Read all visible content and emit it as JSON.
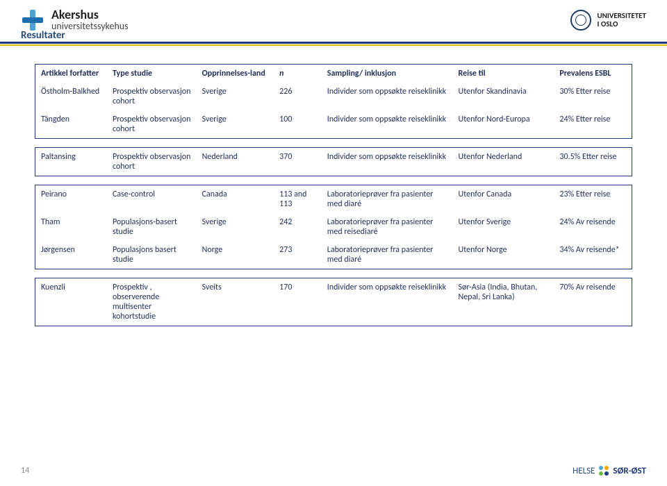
{
  "brand": {
    "left_line1": "Akershus",
    "left_line2": "universitetssykehus",
    "right_line1": "UNIVERSITETET",
    "right_line2": "I OSLO"
  },
  "section_title": "Resultater",
  "page_number": "14",
  "footer_brand": {
    "prefix": "HELSE",
    "suffix": "SØR-ØST"
  },
  "columns": [
    "Artikkel forfatter",
    "Type studie",
    "Opprinnelses-land",
    "n",
    "Sampling/ inklusjon",
    "Reise til",
    "Prevalens ESBL"
  ],
  "block_border_color": "#1e3a7d",
  "text_color": "#1f2d5a",
  "blocks": [
    {
      "has_header": true,
      "rows": [
        [
          "Östholm-Balkhed",
          "Prospektiv observasjon cohort",
          "Sverige",
          "226",
          "Individer som oppsøkte reiseklinikk",
          "Utenfor Skandinavia",
          "30% Etter reise"
        ],
        [
          "Tängden",
          "Prospektiv observasjon cohort",
          "Sverige",
          "100",
          "Individer som oppsøkte reiseklinikk",
          "Utenfor Nord-Europa",
          "24% Etter reise"
        ]
      ]
    },
    {
      "has_header": false,
      "rows": [
        [
          "Paltansing",
          "Prospektiv observasjon cohort",
          "Nederland",
          "370",
          "Individer som oppsøkte reiseklinikk",
          "Utenfor Nederland",
          "30.5% Etter reise"
        ]
      ]
    },
    {
      "has_header": false,
      "rows": [
        [
          "Peirano",
          "Case-control",
          "Canada",
          "113 and 113",
          "Laboratorieprøver fra pasienter med diaré",
          "Utenfor Canada",
          "23% Etter reise"
        ],
        [
          "Tham",
          "Populasjons-basert studie",
          "Sverige",
          "242",
          "Laboratorieprøver fra pasienter med reisediaré",
          "Utenfor Sverige",
          "24% Av reisende"
        ],
        [
          "Jørgensen",
          "Populasjons basert studie",
          "Norge",
          "273",
          "Laboratorieprøver fra pasienter med diaré",
          "Utenfor Norge",
          "34% Av reisende*"
        ]
      ]
    },
    {
      "has_header": false,
      "rows": [
        [
          "Kuenzli",
          "Prospektiv , observerende multisenter kohortstudie",
          "Sveits",
          "170",
          "Individer som oppsøkte reiseklinikk",
          "Sør-Asia (India, Bhutan, Nepal, Sri Lanka)",
          "70% Av reisende"
        ]
      ]
    }
  ]
}
